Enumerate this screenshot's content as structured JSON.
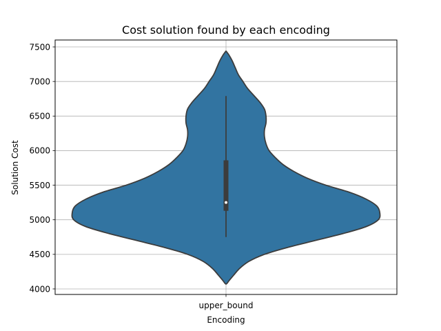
{
  "chart_data": {
    "type": "violin",
    "title": "Cost solution found by each encoding",
    "xlabel": "Encoding",
    "ylabel": "Solution Cost",
    "categories": [
      "upper_bound"
    ],
    "ylim": [
      3920,
      7600
    ],
    "yticks": [
      4000,
      4500,
      5000,
      5500,
      6000,
      6500,
      7000,
      7500
    ],
    "grid": true,
    "colors": {
      "body": "#3274a1",
      "outline": "#3c3c3c",
      "box": "#3c3c3c",
      "median": "#ffffff",
      "grid": "#b0b0b0"
    },
    "violins": [
      {
        "category": "upper_bound",
        "min": 4070,
        "max": 7440,
        "median": 5250,
        "q1": 5130,
        "q3": 5860,
        "whisker_low": 4750,
        "whisker_high": 6790,
        "density_profile": {
          "y": [
            4070,
            4120,
            4200,
            4300,
            4400,
            4500,
            4600,
            4700,
            4800,
            4900,
            5000,
            5100,
            5200,
            5300,
            5400,
            5500,
            5600,
            5700,
            5800,
            5900,
            6000,
            6100,
            6200,
            6300,
            6400,
            6500,
            6600,
            6700,
            6800,
            6900,
            7000,
            7100,
            7200,
            7300,
            7380,
            7440
          ],
          "half_width": [
            0.0,
            0.02,
            0.05,
            0.09,
            0.15,
            0.25,
            0.4,
            0.58,
            0.76,
            0.91,
            0.99,
            1.0,
            0.98,
            0.91,
            0.8,
            0.65,
            0.53,
            0.44,
            0.37,
            0.32,
            0.28,
            0.26,
            0.25,
            0.25,
            0.26,
            0.26,
            0.25,
            0.22,
            0.18,
            0.14,
            0.11,
            0.08,
            0.06,
            0.04,
            0.02,
            0.0
          ]
        }
      }
    ]
  }
}
